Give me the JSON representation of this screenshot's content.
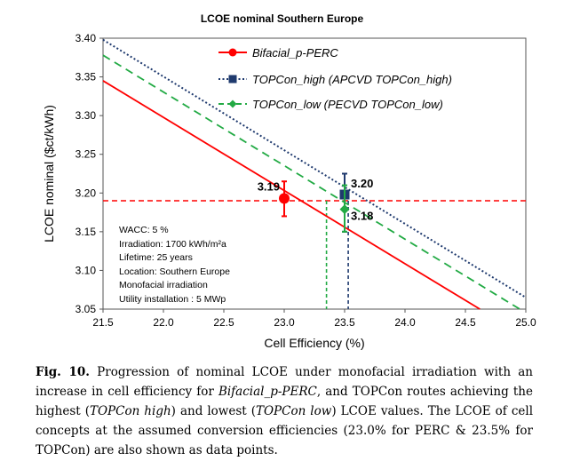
{
  "chart_data": {
    "type": "line",
    "title": "LCOE nominal Southern Europe",
    "xlabel": "Cell Efficiency (%)",
    "ylabel": "LCOE nominal ($ct/kWh)",
    "xlim": [
      21.5,
      25.0
    ],
    "ylim": [
      3.05,
      3.4
    ],
    "x_ticks": [
      "21.5",
      "22.0",
      "22.5",
      "23.0",
      "23.5",
      "24.0",
      "24.5",
      "25.0"
    ],
    "y_ticks": [
      "3.05",
      "3.10",
      "3.15",
      "3.20",
      "3.25",
      "3.30",
      "3.35",
      "3.40"
    ],
    "series": [
      {
        "name": "Bifacial_p-PERC",
        "color": "#ff0000",
        "style": "solid",
        "marker": "circle",
        "x": [
          21.5,
          24.62
        ],
        "y": [
          3.345,
          3.05
        ]
      },
      {
        "name": "TOPCon_high (APCVD TOPCon_high)",
        "color": "#1f3a6e",
        "style": "dotted",
        "marker": "square",
        "x": [
          21.5,
          25.0
        ],
        "y": [
          3.398,
          3.065
        ]
      },
      {
        "name": "TOPCon_low (PECVD TOPCon_low)",
        "color": "#22aa44",
        "style": "dashed",
        "marker": "diamond",
        "x": [
          21.5,
          24.95
        ],
        "y": [
          3.378,
          3.05
        ]
      }
    ],
    "points": [
      {
        "series": 0,
        "x": 23.0,
        "y": 3.193,
        "err_low": 3.17,
        "err_high": 3.215,
        "label": "3.19"
      },
      {
        "series": 1,
        "x": 23.5,
        "y": 3.198,
        "err_low": 3.15,
        "err_high": 3.225,
        "label": "3.20"
      },
      {
        "series": 2,
        "x": 23.5,
        "y": 3.179,
        "err_low": 3.15,
        "err_high": 3.21,
        "label": "3.18"
      }
    ],
    "reference_line": {
      "y": 3.19,
      "color": "#ff0000"
    },
    "drop_lines": [
      {
        "x": 23.35,
        "y": 3.19,
        "color": "#22aa44"
      },
      {
        "x": 23.53,
        "y": 3.19,
        "color": "#1f3a6e"
      }
    ],
    "annotation_lines": [
      "WACC: 5 %",
      "Irradiation: 1700 kWh/m²a",
      "Lifetime: 25 years",
      "Location: Southern Europe",
      "Monofacial irradiation",
      "Utility installation : 5 MWp"
    ]
  },
  "caption": {
    "label": "Fig. 10.",
    "parts": [
      {
        "t": " Progression of nominal LCOE under monofacial irradiation with an increase in cell efficiency for ",
        "i": false
      },
      {
        "t": "Bifacial_p-PERC",
        "i": true
      },
      {
        "t": ", and TOPCon routes achieving the highest (",
        "i": false
      },
      {
        "t": "TOPCon high",
        "i": true
      },
      {
        "t": ") and lowest (",
        "i": false
      },
      {
        "t": "TOPCon low",
        "i": true
      },
      {
        "t": ") LCOE values. The LCOE of cell concepts at the assumed conversion efficiencies (23.0% for PERC & 23.5% for TOPCon) are also shown as data points.",
        "i": false
      }
    ]
  }
}
